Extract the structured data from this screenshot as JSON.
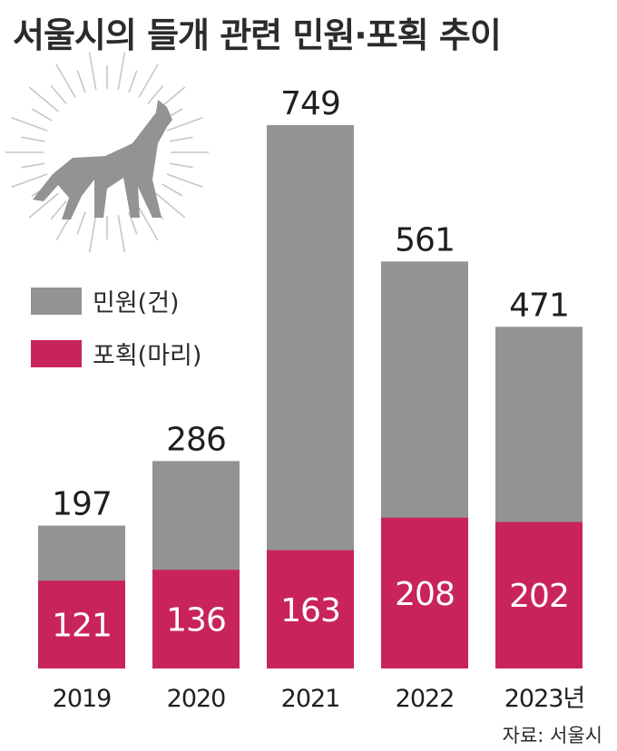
{
  "title": "서울시의 들개 관련 민원·포획 추이",
  "source": "자료: 서울시",
  "legend": [
    {
      "label": "민원(건)",
      "color": "#939396"
    },
    {
      "label": "포획(마리)",
      "color": "#c9245a"
    }
  ],
  "icon": "howling-wolf-icon",
  "chart_data": {
    "type": "bar",
    "stacked": false,
    "categories": [
      "2019",
      "2020",
      "2021",
      "2022",
      "2023년"
    ],
    "series": [
      {
        "name": "민원(건)",
        "values": [
          197,
          286,
          749,
          561,
          471
        ],
        "color": "#939396"
      },
      {
        "name": "포획(마리)",
        "values": [
          121,
          136,
          163,
          208,
          202
        ],
        "color": "#c9245a"
      }
    ],
    "title": "서울시의 들개 관련 민원·포획 추이",
    "xlabel": "",
    "ylabel": "",
    "ylim": [
      0,
      749
    ],
    "grid": false,
    "legend_position": "left"
  }
}
